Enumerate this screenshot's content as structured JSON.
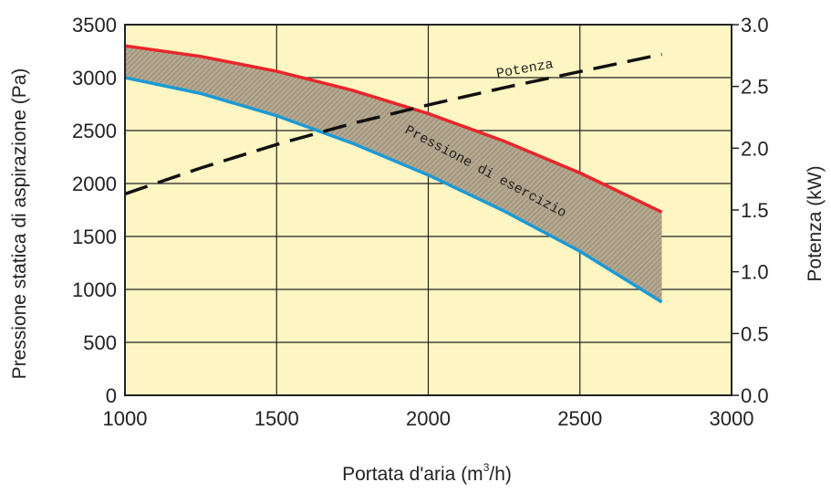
{
  "chart_data": {
    "type": "line",
    "xlabel": "Portata d'aria (m",
    "xlabel_sup": "3",
    "xlabel_tail": "/h)",
    "ylabel_left": "Pressione statica di aspirazione (Pa)",
    "ylabel_right": "Potenza (kW)",
    "xlim": [
      1000,
      3000
    ],
    "ylim_left": [
      0,
      3500
    ],
    "ylim_right": [
      0.0,
      3.0
    ],
    "x_ticks": [
      "1000",
      "1500",
      "2000",
      "2500",
      "3000"
    ],
    "y_left_ticks": [
      "0",
      "500",
      "1000",
      "1500",
      "2000",
      "2500",
      "3000",
      "3500"
    ],
    "y_right_ticks": [
      "0.0",
      "0.5",
      "1.0",
      "1.5",
      "2.0",
      "2.5",
      "3.0"
    ],
    "grid": true,
    "background_color": "#fdf6c3",
    "band_label": "Pressione di esercizio",
    "series": [
      {
        "axis": "left",
        "color": "#e8262a",
        "x": [
          1000,
          1250,
          1500,
          1750,
          2000,
          2250,
          2500,
          2770
        ],
        "y": [
          3300,
          3200,
          3060,
          2880,
          2660,
          2400,
          2100,
          1730
        ]
      },
      {
        "axis": "left",
        "color": "#1b9ad6",
        "x": [
          1000,
          1250,
          1500,
          1750,
          2000,
          2250,
          2500,
          2770
        ],
        "y": [
          3000,
          2850,
          2640,
          2380,
          2080,
          1740,
          1360,
          880
        ]
      },
      {
        "name": "Potenza",
        "axis": "right",
        "color": "#111111",
        "dashed": true,
        "x": [
          1000,
          1250,
          1500,
          1750,
          2000,
          2250,
          2500,
          2770
        ],
        "y": [
          1.63,
          1.84,
          2.03,
          2.2,
          2.35,
          2.49,
          2.62,
          2.76
        ]
      }
    ]
  }
}
